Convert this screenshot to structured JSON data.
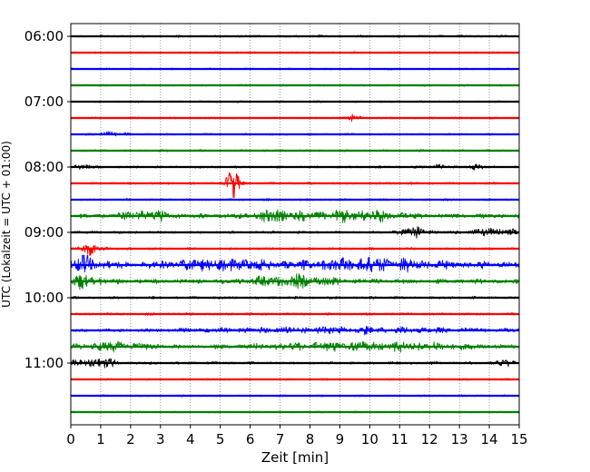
{
  "chart_data": {
    "type": "line",
    "xlabel": "Zeit  [min]",
    "ylabel": "UTC (Lokalzeit = UTC + 01:00)",
    "xlim": [
      0,
      15
    ],
    "x_ticks": [
      "0",
      "1",
      "2",
      "3",
      "4",
      "5",
      "6",
      "7",
      "8",
      "9",
      "10",
      "11",
      "12",
      "13",
      "14",
      "15"
    ],
    "y_ticks": [
      {
        "label": "06:00",
        "row": 0
      },
      {
        "label": "07:00",
        "row": 4
      },
      {
        "label": "08:00",
        "row": 8
      },
      {
        "label": "09:00",
        "row": 12
      },
      {
        "label": "10:00",
        "row": 16
      },
      {
        "label": "11:00",
        "row": 20
      }
    ],
    "grid": "vertical dotted",
    "colors": [
      "#000000",
      "#ff0000",
      "#0000ff",
      "#008000"
    ],
    "traces": [
      {
        "start": "06:00",
        "color": "#000000",
        "amplitude": 0.6,
        "events": []
      },
      {
        "start": "06:15",
        "color": "#ff0000",
        "amplitude": 0.5,
        "events": []
      },
      {
        "start": "06:30",
        "color": "#0000ff",
        "amplitude": 0.5,
        "events": []
      },
      {
        "start": "06:45",
        "color": "#008000",
        "amplitude": 0.5,
        "events": []
      },
      {
        "start": "07:00",
        "color": "#000000",
        "amplitude": 0.5,
        "events": []
      },
      {
        "start": "07:15",
        "color": "#ff0000",
        "amplitude": 0.5,
        "events": [
          {
            "t": 9.5,
            "a": 1.5,
            "w": 0.3
          }
        ]
      },
      {
        "start": "07:30",
        "color": "#0000ff",
        "amplitude": 0.5,
        "events": [
          {
            "t": 1.4,
            "a": 1.4,
            "w": 0.4
          }
        ]
      },
      {
        "start": "07:45",
        "color": "#008000",
        "amplitude": 0.6,
        "events": []
      },
      {
        "start": "08:00",
        "color": "#000000",
        "amplitude": 0.6,
        "events": [
          {
            "t": 0.4,
            "a": 1.4,
            "w": 0.3
          },
          {
            "t": 12.3,
            "a": 1.4,
            "w": 0.3
          },
          {
            "t": 13.5,
            "a": 1.6,
            "w": 0.3
          }
        ]
      },
      {
        "start": "08:15",
        "color": "#ff0000",
        "amplitude": 0.6,
        "events": [
          {
            "t": 5.4,
            "a": 7.5,
            "w": 0.25
          }
        ]
      },
      {
        "start": "08:30",
        "color": "#0000ff",
        "amplitude": 0.6,
        "events": []
      },
      {
        "start": "08:45",
        "color": "#008000",
        "amplitude": 1.2,
        "events": [
          {
            "t": 2.5,
            "a": 2.5,
            "w": 0.8
          },
          {
            "t": 6.8,
            "a": 2.6,
            "w": 0.8
          },
          {
            "t": 9.5,
            "a": 2.8,
            "w": 1.5
          }
        ]
      },
      {
        "start": "09:00",
        "color": "#000000",
        "amplitude": 0.7,
        "events": [
          {
            "t": 11.5,
            "a": 2.8,
            "w": 0.5
          },
          {
            "t": 14.2,
            "a": 2.2,
            "w": 0.8
          }
        ]
      },
      {
        "start": "09:15",
        "color": "#ff0000",
        "amplitude": 0.6,
        "events": [
          {
            "t": 0.7,
            "a": 3.0,
            "w": 0.4
          }
        ]
      },
      {
        "start": "09:30",
        "color": "#0000ff",
        "amplitude": 1.8,
        "events": [
          {
            "t": 0.5,
            "a": 3.2,
            "w": 0.6
          },
          {
            "t": 5.0,
            "a": 2.5,
            "w": 1.5
          },
          {
            "t": 10.0,
            "a": 2.6,
            "w": 2.0
          }
        ]
      },
      {
        "start": "09:45",
        "color": "#008000",
        "amplitude": 1.2,
        "events": [
          {
            "t": 0.5,
            "a": 2.8,
            "w": 0.6
          },
          {
            "t": 7.5,
            "a": 2.5,
            "w": 1.5
          }
        ]
      },
      {
        "start": "10:00",
        "color": "#000000",
        "amplitude": 0.7,
        "events": []
      },
      {
        "start": "10:15",
        "color": "#ff0000",
        "amplitude": 0.7,
        "events": []
      },
      {
        "start": "10:30",
        "color": "#0000ff",
        "amplitude": 0.8,
        "events": [
          {
            "t": 9.0,
            "a": 1.5,
            "w": 4.5
          }
        ]
      },
      {
        "start": "10:45",
        "color": "#008000",
        "amplitude": 1.0,
        "events": [
          {
            "t": 1.5,
            "a": 2.0,
            "w": 1.2
          },
          {
            "t": 10.0,
            "a": 2.2,
            "w": 3.5
          }
        ]
      },
      {
        "start": "11:00",
        "color": "#000000",
        "amplitude": 0.7,
        "events": [
          {
            "t": 0.8,
            "a": 3.5,
            "w": 0.6
          },
          {
            "t": 14.5,
            "a": 1.5,
            "w": 0.3
          }
        ]
      },
      {
        "start": "11:15",
        "color": "#ff0000",
        "amplitude": 0.5,
        "events": []
      },
      {
        "start": "11:30",
        "color": "#0000ff",
        "amplitude": 0.5,
        "events": []
      },
      {
        "start": "11:45",
        "color": "#008000",
        "amplitude": 0.5,
        "events": []
      }
    ]
  }
}
